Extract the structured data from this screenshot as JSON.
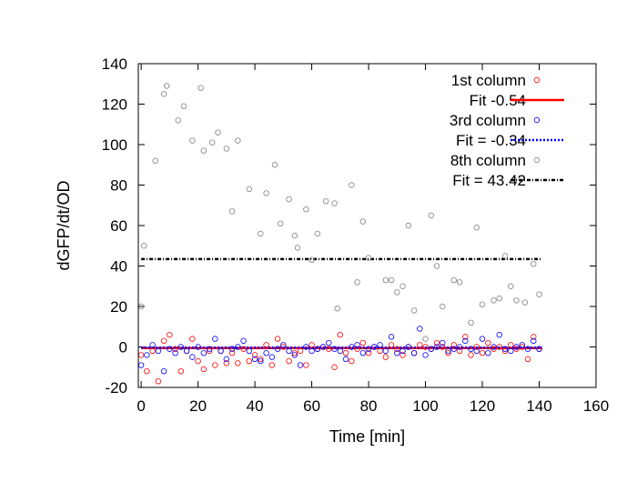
{
  "chart_data": {
    "type": "scatter",
    "title": "",
    "xlabel": "Time [min]",
    "ylabel": "dGFP/dt/OD",
    "xlim": [
      -1,
      160
    ],
    "ylim": [
      -20,
      140
    ],
    "xticks": [
      "0",
      "20",
      "40",
      "60",
      "80",
      "100",
      "120",
      "140",
      "160"
    ],
    "yticks": [
      "-20",
      "0",
      "20",
      "40",
      "60",
      "80",
      "100",
      "120",
      "140"
    ],
    "legend_position": "top-right",
    "series": [
      {
        "name": "1st column",
        "color": "#ff0000",
        "marker": "circle",
        "x": [
          0,
          2,
          4,
          6,
          8,
          10,
          12,
          14,
          16,
          18,
          20,
          22,
          24,
          26,
          28,
          30,
          32,
          34,
          36,
          38,
          40,
          42,
          44,
          46,
          48,
          50,
          52,
          54,
          56,
          58,
          60,
          62,
          64,
          66,
          68,
          70,
          72,
          74,
          76,
          78,
          80,
          82,
          84,
          86,
          88,
          90,
          92,
          94,
          96,
          98,
          100,
          102,
          104,
          106,
          108,
          110,
          112,
          114,
          116,
          118,
          120,
          122,
          124,
          126,
          128,
          130,
          132,
          134,
          136,
          138,
          140
        ],
        "y": [
          -4,
          -12,
          -2,
          -17,
          3,
          6,
          -1,
          -12,
          -2,
          4,
          -7,
          -11,
          -2,
          -9,
          -2,
          -8,
          -3,
          -8,
          -1,
          -7,
          -4,
          -6,
          1,
          -9,
          4,
          0,
          -7,
          -3,
          -2,
          -9,
          1,
          -1,
          0,
          -1,
          -10,
          6,
          -3,
          -7,
          -1,
          2,
          -3,
          0,
          -2,
          -5,
          1,
          -1,
          -4,
          0,
          -3,
          1,
          0,
          -1,
          2,
          0,
          -3,
          1,
          -2,
          5,
          -4,
          0,
          -3,
          2,
          -1,
          0,
          -2,
          1,
          -1,
          0,
          -6,
          5,
          -1
        ]
      },
      {
        "name": "3rd column",
        "color": "#0000ff",
        "marker": "circle",
        "x": [
          0,
          2,
          4,
          6,
          8,
          10,
          12,
          14,
          16,
          18,
          20,
          22,
          24,
          26,
          28,
          30,
          32,
          34,
          36,
          38,
          40,
          42,
          44,
          46,
          48,
          50,
          52,
          54,
          56,
          58,
          60,
          62,
          64,
          66,
          68,
          70,
          72,
          74,
          76,
          78,
          80,
          82,
          84,
          86,
          88,
          90,
          92,
          94,
          96,
          98,
          100,
          102,
          104,
          106,
          108,
          110,
          112,
          114,
          116,
          118,
          120,
          122,
          124,
          126,
          128,
          130,
          132,
          134,
          136,
          138,
          140
        ],
        "y": [
          -9,
          -4,
          1,
          -2,
          -12,
          -1,
          -3,
          0,
          -2,
          -5,
          0,
          -3,
          -1,
          4,
          -2,
          -6,
          -1,
          0,
          3,
          -2,
          -6,
          -7,
          -3,
          -5,
          -1,
          1,
          -2,
          -4,
          -9,
          0,
          -2,
          -1,
          0,
          2,
          -1,
          -2,
          -6,
          0,
          1,
          -3,
          -1,
          0,
          1,
          -2,
          5,
          -3,
          -2,
          0,
          -3,
          9,
          -4,
          -1,
          0,
          2,
          -2,
          -1,
          0,
          3,
          -1,
          -2,
          4,
          -3,
          0,
          6,
          -1,
          -2,
          0,
          1,
          -1,
          3,
          -1
        ]
      },
      {
        "name": "8th column",
        "color": "#808080",
        "marker": "circle",
        "x": [
          0,
          1,
          5,
          8,
          9,
          13,
          15,
          18,
          21,
          22,
          25,
          27,
          30,
          32,
          34,
          38,
          42,
          44,
          47,
          49,
          52,
          54,
          55,
          58,
          60,
          62,
          65,
          68,
          69,
          74,
          76,
          78,
          80,
          86,
          88,
          90,
          92,
          94,
          96,
          100,
          102,
          104,
          106,
          110,
          112,
          116,
          118,
          120,
          124,
          126,
          128,
          130,
          132,
          135,
          138,
          140
        ],
        "y": [
          20,
          50,
          92,
          125,
          129,
          112,
          119,
          102,
          128,
          97,
          101,
          106,
          98,
          67,
          102,
          78,
          56,
          76,
          90,
          61,
          73,
          55,
          49,
          68,
          43,
          56,
          72,
          71,
          19,
          80,
          32,
          62,
          44,
          33,
          33,
          27,
          30,
          60,
          18,
          4,
          65,
          40,
          20,
          33,
          32,
          12,
          59,
          21,
          23,
          24,
          45,
          30,
          23,
          22,
          41,
          26
        ]
      }
    ],
    "fits": [
      {
        "name": "Fit -0.54",
        "value": -0.54,
        "color": "#ff0000",
        "style": "solid",
        "x_range": [
          0,
          141
        ]
      },
      {
        "name": "Fit = -0.34",
        "value": -0.34,
        "color": "#0000ff",
        "style": "dotted",
        "x_range": [
          0,
          141
        ]
      },
      {
        "name": "Fit = 43.42",
        "value": 43.42,
        "color": "#000000",
        "style": "dash-dot",
        "x_range": [
          0,
          141
        ]
      }
    ],
    "legend": [
      {
        "label": "1st column",
        "kind": "point",
        "color": "#ff0000"
      },
      {
        "label": "Fit -0.54",
        "kind": "line",
        "color": "#ff0000",
        "style": "solid"
      },
      {
        "label": "3rd column",
        "kind": "point",
        "color": "#0000ff"
      },
      {
        "label": "Fit = -0.34",
        "kind": "line",
        "color": "#0000ff",
        "style": "dotted"
      },
      {
        "label": "8th column",
        "kind": "point",
        "color": "#808080"
      },
      {
        "label": "Fit = 43.42",
        "kind": "line",
        "color": "#000000",
        "style": "dash-dot"
      }
    ]
  }
}
